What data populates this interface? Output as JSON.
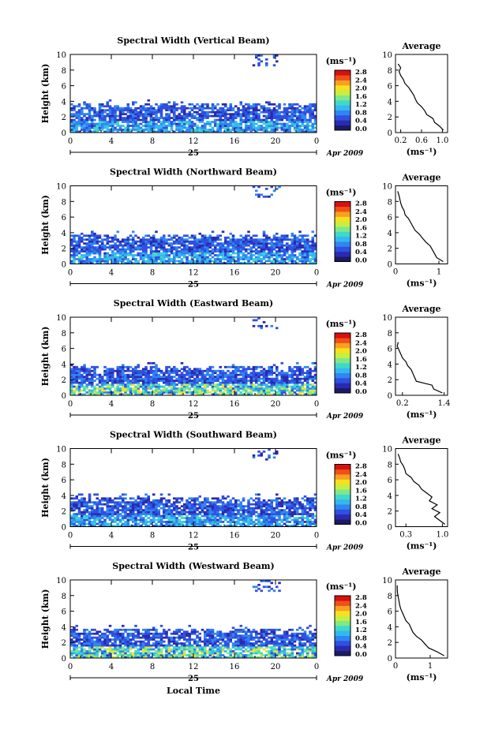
{
  "figure": {
    "panels_common": {
      "y_axis_label": "Height (km)",
      "colorbar_unit": "(ms⁻¹)",
      "colorbar_ticks": [
        "0.0",
        "0.4",
        "0.8",
        "1.2",
        "1.6",
        "2.0",
        "2.4",
        "2.8"
      ],
      "time_ticks": [
        "0",
        "4",
        "8",
        "12",
        "16",
        "20",
        "0"
      ],
      "height_ticks": [
        "0",
        "2",
        "4",
        "6",
        "8",
        "10"
      ],
      "day_label": "25",
      "month_year_label": "Apr 2009",
      "average_title": "Average",
      "average_unit": "(ms⁻¹)"
    },
    "x_axis_label": "Local Time",
    "colormap": [
      "#1a1a66",
      "#2a2ab0",
      "#2f50e0",
      "#2f86f0",
      "#33b8f0",
      "#40d8c8",
      "#7ee88a",
      "#c8ee40",
      "#f8e020",
      "#f8a020",
      "#f05018",
      "#d81010"
    ]
  },
  "chart_data": [
    {
      "type": "heatmap",
      "title": "Spectral Width (Vertical Beam)",
      "x_range_hours": [
        0,
        24
      ],
      "y_range_km": [
        0,
        10
      ],
      "color_range": [
        0.0,
        2.8
      ],
      "profile": {
        "title": "Average",
        "x_ticks": [
          "0.2",
          "0.6",
          "1.0"
        ],
        "x_range": [
          0.1,
          1.1
        ],
        "height_km": [
          0.3,
          0.8,
          1.3,
          1.8,
          2.3,
          2.8,
          3.3,
          3.8,
          4.3,
          4.8,
          5.3,
          5.8,
          6.3,
          6.8,
          7.3,
          7.8,
          8.3,
          8.8
        ],
        "values": [
          1.02,
          0.95,
          0.85,
          0.82,
          0.7,
          0.66,
          0.6,
          0.52,
          0.48,
          0.45,
          0.4,
          0.35,
          0.28,
          0.25,
          0.2,
          0.17,
          0.2,
          0.15
        ]
      }
    },
    {
      "type": "heatmap",
      "title": "Spectral Width (Northward Beam)",
      "x_range_hours": [
        0,
        24
      ],
      "y_range_km": [
        0,
        10
      ],
      "color_range": [
        0.0,
        2.8
      ],
      "profile": {
        "title": "Average",
        "x_ticks": [
          "0",
          "1"
        ],
        "x_range": [
          0,
          1.2
        ],
        "height_km": [
          0.3,
          0.8,
          1.3,
          1.8,
          2.3,
          2.8,
          3.3,
          3.8,
          4.3,
          4.8,
          5.3,
          5.8,
          6.3,
          6.8,
          7.3,
          7.8,
          8.3,
          8.8,
          9.3
        ],
        "values": [
          1.1,
          0.95,
          0.9,
          0.85,
          0.8,
          0.7,
          0.62,
          0.55,
          0.45,
          0.4,
          0.35,
          0.3,
          0.22,
          0.2,
          0.15,
          0.12,
          0.1,
          0.08,
          0.05
        ]
      }
    },
    {
      "type": "heatmap",
      "title": "Spectral Width (Eastward Beam)",
      "x_range_hours": [
        0,
        24
      ],
      "y_range_km": [
        0,
        10
      ],
      "color_range": [
        0.0,
        2.8
      ],
      "profile": {
        "title": "Average",
        "x_ticks": [
          "0.2",
          "1.4"
        ],
        "x_range": [
          0.0,
          1.5
        ],
        "height_km": [
          0.3,
          0.8,
          1.3,
          1.8,
          2.3,
          2.8,
          3.3,
          3.8,
          4.3,
          4.8,
          5.3,
          5.8,
          6.3,
          6.8
        ],
        "values": [
          1.35,
          1.1,
          1.05,
          0.6,
          0.55,
          0.5,
          0.45,
          0.35,
          0.3,
          0.2,
          0.15,
          0.1,
          0.05,
          0.08
        ]
      }
    },
    {
      "type": "heatmap",
      "title": "Spectral Width (Southward Beam)",
      "x_range_hours": [
        0,
        24
      ],
      "y_range_km": [
        0,
        10
      ],
      "color_range": [
        0.0,
        2.8
      ],
      "profile": {
        "title": "Average",
        "x_ticks": [
          "0.3",
          "1.0"
        ],
        "x_range": [
          0.1,
          1.1
        ],
        "height_km": [
          0.3,
          0.8,
          1.3,
          1.8,
          2.3,
          2.8,
          3.3,
          3.8,
          4.3,
          4.8,
          5.3,
          5.8,
          6.3,
          6.8,
          7.3,
          7.8,
          8.3,
          8.8,
          9.3
        ],
        "values": [
          1.05,
          0.95,
          0.85,
          0.95,
          0.8,
          0.9,
          0.75,
          0.8,
          0.7,
          0.6,
          0.55,
          0.45,
          0.4,
          0.3,
          0.28,
          0.25,
          0.2,
          0.18,
          0.15
        ]
      }
    },
    {
      "type": "heatmap",
      "title": "Spectral Width (Westward Beam)",
      "x_range_hours": [
        0,
        24
      ],
      "y_range_km": [
        0,
        10
      ],
      "color_range": [
        0.0,
        2.8
      ],
      "profile": {
        "title": "Average",
        "x_ticks": [
          "0",
          "1"
        ],
        "x_range": [
          0,
          1.5
        ],
        "height_km": [
          0.3,
          0.8,
          1.3,
          1.8,
          2.3,
          2.8,
          3.3,
          3.8,
          4.3,
          4.8,
          5.3,
          5.8,
          6.3,
          6.8,
          7.3,
          7.8,
          8.3,
          8.8,
          9.3
        ],
        "values": [
          1.4,
          1.2,
          0.95,
          0.85,
          0.75,
          0.6,
          0.5,
          0.45,
          0.4,
          0.3,
          0.25,
          0.2,
          0.15,
          0.12,
          0.1,
          0.08,
          0.06,
          0.05,
          0.05
        ]
      }
    }
  ]
}
